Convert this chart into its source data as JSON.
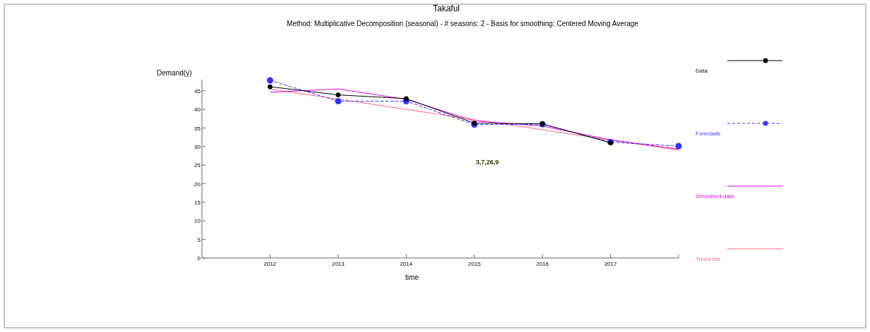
{
  "chart_data": {
    "type": "line",
    "title": "Takaful",
    "subtitle": "Method: Multiplicative Decomposition (seasonal) - # seasons:  2 - Basis for smoothing: Centered Moving Average",
    "xlabel": "time",
    "ylabel": "Demand(y)",
    "xlim": [
      2011,
      2018
    ],
    "xticks": [
      2012,
      2013,
      2014,
      2015,
      2016,
      2017,
      {
        "value": 2018,
        "label": null
      }
    ],
    "ylim": [
      0,
      48
    ],
    "yticks": [
      0,
      5,
      10,
      15,
      20,
      25,
      30,
      35,
      40,
      45
    ],
    "legend": "right",
    "grid": false,
    "annotations": [
      "3,7,26,9"
    ],
    "series": [
      {
        "name": "Data",
        "color": "#000000",
        "marker": "circle",
        "line_style": "solid",
        "x": [
          2012,
          2013,
          2014,
          2015,
          2016,
          2017
        ],
        "values": [
          46.1,
          43.9,
          42.9,
          36.3,
          36.1,
          31.0
        ]
      },
      {
        "name": "Forecasts",
        "color": "#3333ff",
        "marker": "circle",
        "line_style": "dashed",
        "x": [
          2012,
          2013,
          2014,
          2015,
          2016,
          2017,
          2018
        ],
        "values": [
          47.8,
          42.2,
          42.2,
          35.9,
          36.0,
          31.2,
          30.1
        ]
      },
      {
        "name": "Smoothed data",
        "color": "#dd00dd",
        "marker": "none",
        "line_style": "solid",
        "x": [
          2012,
          2013,
          2014,
          2015,
          2016,
          2017,
          2018
        ],
        "values": [
          44.6,
          45.5,
          42.7,
          36.9,
          35.5,
          31.8,
          29.3
        ]
      },
      {
        "name": "Trend line",
        "color": "#ff6680",
        "marker": "none",
        "line_style": "solid",
        "x": [
          2012,
          2018
        ],
        "values": [
          45.5,
          29.0
        ]
      }
    ]
  }
}
